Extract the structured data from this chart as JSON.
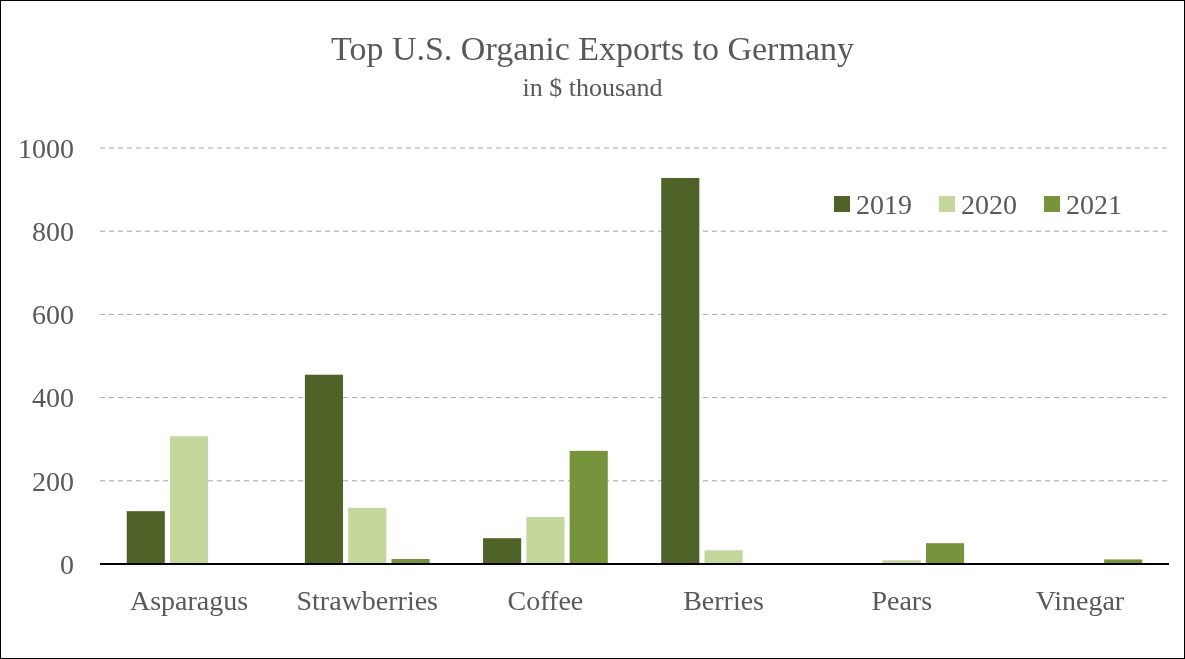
{
  "chart_data": {
    "type": "bar",
    "title": "Top U.S. Organic Exports to Germany",
    "subtitle": "in $ thousand",
    "categories": [
      "Asparagus",
      "Strawberries",
      "Coffee",
      "Berries",
      "Pears",
      "Vinegar"
    ],
    "series": [
      {
        "name": "2019",
        "color": "#4f6228",
        "values": [
          127,
          455,
          62,
          928,
          0,
          2
        ]
      },
      {
        "name": "2020",
        "color": "#c3d69b",
        "values": [
          307,
          135,
          113,
          33,
          9,
          null
        ]
      },
      {
        "name": "2021",
        "color": "#77933c",
        "values": [
          0,
          12,
          272,
          0,
          50,
          11
        ]
      }
    ],
    "ylim": [
      0,
      1000
    ],
    "yticks": [
      0,
      200,
      400,
      600,
      800,
      1000
    ],
    "grid": "y",
    "legend": "top right"
  }
}
